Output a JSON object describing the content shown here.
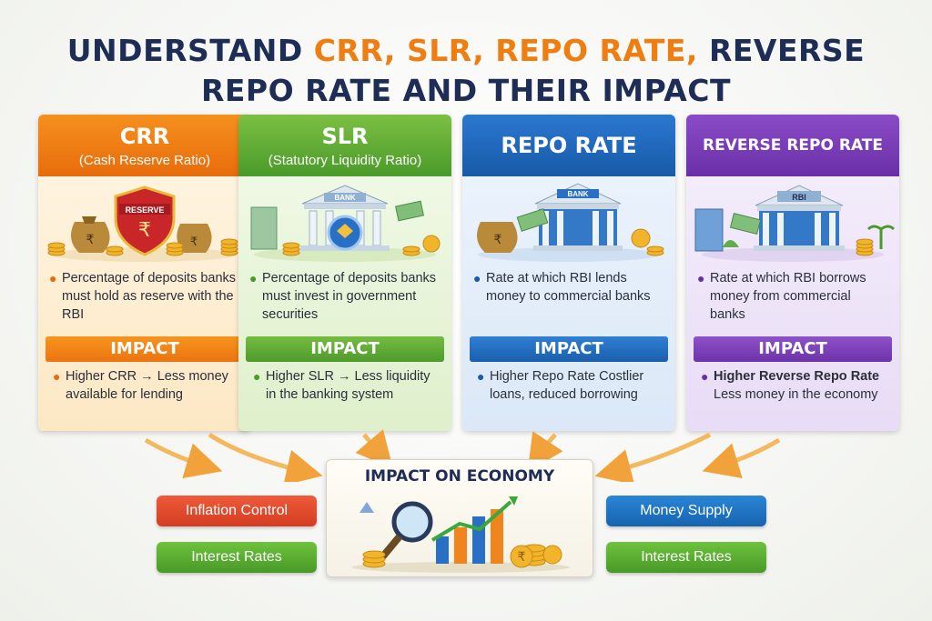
{
  "title": {
    "part1": "UNDERSTAND ",
    "part2": "CRR, SLR, REPO RATE,",
    "part3": " REVERSE",
    "part4": "REPO RATE AND THEIR IMPACT"
  },
  "cards": [
    {
      "heading": "CRR",
      "subheading": "(Cash Reserve Ratio)",
      "illustration_label": "RESERVE",
      "description": "Percentage of deposits banks must hold as reserve with the RBI",
      "impact_label": "IMPACT",
      "impact_text": "Higher CRR → Less money available for lending",
      "color": "#e86c0c"
    },
    {
      "heading": "SLR",
      "subheading": "(Statutory Liquidity Ratio)",
      "illustration_label": "BANK",
      "description": "Percentage of deposits banks must invest in government securities",
      "impact_label": "IMPACT",
      "impact_text": "Higher SLR → Less liquidity in the banking system",
      "color": "#4a9a2a"
    },
    {
      "heading": "REPO RATE",
      "subheading": "",
      "illustration_label": "BANK",
      "description": "Rate at which RBI lends money to commercial banks",
      "impact_label": "IMPACT",
      "impact_text": "Higher Repo Rate Costlier loans, reduced borrowing",
      "color": "#175aa8"
    },
    {
      "heading": "REVERSE REPO RATE",
      "subheading": "",
      "illustration_label": "RBI",
      "description": "Rate at which RBI borrows money from commercial banks",
      "impact_label": "IMPACT",
      "impact_text_bold": "Higher Reverse Repo Rate",
      "impact_text": "Less money in the economy",
      "color": "#6a2fa8"
    }
  ],
  "center": {
    "title": "IMPACT ON ECONOMY"
  },
  "pills": {
    "inflation_control": "Inflation Control",
    "interest_rates_left": "Interest Rates",
    "money_supply": "Money Supply",
    "interest_rates_right": "Interest Rates"
  },
  "icons": {
    "coin": "₹"
  }
}
